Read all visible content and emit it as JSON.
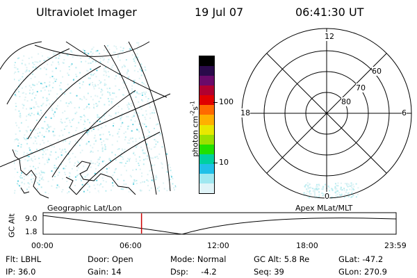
{
  "header": {
    "title": "Ultraviolet Imager",
    "date": "19 Jul 07",
    "time": "06:41:30 UT"
  },
  "colorbar": {
    "label": "photon cm",
    "exp1": "-2",
    "mid": "s",
    "exp2": "-1",
    "ticks": [
      "100",
      "10"
    ],
    "colors": [
      "#000000",
      "#2a0a4a",
      "#6a0a6a",
      "#b00030",
      "#e00000",
      "#ff6a00",
      "#ffb000",
      "#e8e800",
      "#9ae000",
      "#20e000",
      "#00d0a0",
      "#20c0e8",
      "#a0e8f0",
      "#e0f4f8"
    ]
  },
  "polar": {
    "hour_labels": [
      "12",
      "18",
      "6",
      "0"
    ],
    "lat_labels": [
      "60",
      "70",
      "80"
    ]
  },
  "map": {
    "label_left": "Geographic Lat/Lon",
    "label_right": "Apex MLat/MLT"
  },
  "altplot": {
    "ylabel": "GC Alt",
    "yticks": [
      "9.0",
      "1.8"
    ],
    "xticks": [
      "00:00",
      "06:00",
      "12:00",
      "18:00",
      "23:59"
    ],
    "current_time_fraction": 0.2788,
    "marker_color": "#cc0000"
  },
  "footer": {
    "flt": "Flt: LBHL",
    "ip": "IP: 36.0",
    "door": "Door: Open",
    "gain": "Gain: 14",
    "mode": "Mode: Normal",
    "dsp": "Dsp:     -4.2",
    "gcalt": "GC Alt: 5.8 Re",
    "seq": "Seq: 39",
    "glat": "GLat: -47.2",
    "glon": "GLon: 270.9"
  }
}
